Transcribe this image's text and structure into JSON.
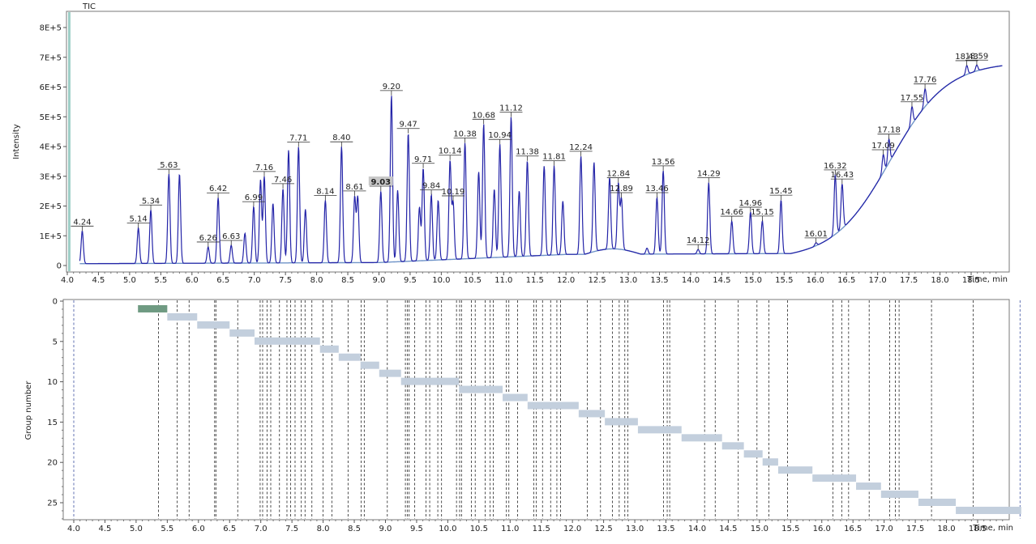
{
  "chart_data": [
    {
      "type": "line",
      "title": "TIC",
      "xlabel": "Time, min",
      "ylabel": "Intensity",
      "xlim": [
        4.0,
        19.0
      ],
      "ylim": [
        0,
        850000
      ],
      "x_ticks": [
        "4.0",
        "4.5",
        "5.0",
        "5.5",
        "6.0",
        "6.5",
        "7.0",
        "7.5",
        "8.0",
        "8.5",
        "9.0",
        "9.5",
        "10.0",
        "10.5",
        "11.0",
        "11.5",
        "12.0",
        "12.5",
        "13.0",
        "13.5",
        "14.0",
        "14.5",
        "15.0",
        "15.5",
        "16.0",
        "16.5",
        "17.0",
        "17.5",
        "18.0",
        "18.5"
      ],
      "y_ticks": [
        {
          "value": 0,
          "label": "0"
        },
        {
          "value": 100000,
          "label": "1E+5"
        },
        {
          "value": 200000,
          "label": "2E+5"
        },
        {
          "value": 300000,
          "label": "3E+5"
        },
        {
          "value": 400000,
          "label": "4E+5"
        },
        {
          "value": 500000,
          "label": "5E+5"
        },
        {
          "value": 600000,
          "label": "6E+5"
        },
        {
          "value": 700000,
          "label": "7E+5"
        },
        {
          "value": 800000,
          "label": "8E+5"
        }
      ],
      "cursor_x": 4.24,
      "highlighted_label": "9.03",
      "peaks": [
        {
          "t": 4.24,
          "label": "4.24",
          "h": 110000
        },
        {
          "t": 5.14,
          "label": "5.14",
          "h": 120000
        },
        {
          "t": 5.34,
          "label": "5.34",
          "h": 180000
        },
        {
          "t": 5.63,
          "label": "5.63",
          "h": 300000
        },
        {
          "t": 5.8,
          "label": "",
          "h": 300000
        },
        {
          "t": 6.26,
          "label": "6.26",
          "h": 55000
        },
        {
          "t": 6.42,
          "label": "6.42",
          "h": 220000
        },
        {
          "t": 6.63,
          "label": "6.63",
          "h": 60000
        },
        {
          "t": 6.85,
          "label": "",
          "h": 100000
        },
        {
          "t": 6.99,
          "label": "6.99",
          "h": 190000
        },
        {
          "t": 7.1,
          "label": "",
          "h": 280000
        },
        {
          "t": 7.16,
          "label": "7.16",
          "h": 290000
        },
        {
          "t": 7.3,
          "label": "",
          "h": 200000
        },
        {
          "t": 7.46,
          "label": "7.46",
          "h": 250000
        },
        {
          "t": 7.55,
          "label": "",
          "h": 380000
        },
        {
          "t": 7.71,
          "label": "7.71",
          "h": 390000
        },
        {
          "t": 7.82,
          "label": "",
          "h": 180000
        },
        {
          "t": 8.14,
          "label": "8.14",
          "h": 210000
        },
        {
          "t": 8.4,
          "label": "8.40",
          "h": 390000
        },
        {
          "t": 8.61,
          "label": "8.61",
          "h": 220000
        },
        {
          "t": 8.66,
          "label": "",
          "h": 220000
        },
        {
          "t": 9.03,
          "label": "9.03",
          "h": 240000
        },
        {
          "t": 9.2,
          "label": "9.20",
          "h": 560000
        },
        {
          "t": 9.3,
          "label": "",
          "h": 240000
        },
        {
          "t": 9.47,
          "label": "9.47",
          "h": 430000
        },
        {
          "t": 9.65,
          "label": "",
          "h": 180000
        },
        {
          "t": 9.71,
          "label": "9.71",
          "h": 310000
        },
        {
          "t": 9.84,
          "label": "9.84",
          "h": 220000
        },
        {
          "t": 9.95,
          "label": "",
          "h": 200000
        },
        {
          "t": 10.14,
          "label": "10.14",
          "h": 330000
        },
        {
          "t": 10.19,
          "label": "10.19",
          "h": 190000
        },
        {
          "t": 10.38,
          "label": "10.38",
          "h": 390000
        },
        {
          "t": 10.6,
          "label": "",
          "h": 290000
        },
        {
          "t": 10.68,
          "label": "10.68",
          "h": 450000
        },
        {
          "t": 10.85,
          "label": "",
          "h": 230000
        },
        {
          "t": 10.94,
          "label": "10.94",
          "h": 380000
        },
        {
          "t": 11.12,
          "label": "11.12",
          "h": 470000
        },
        {
          "t": 11.25,
          "label": "",
          "h": 220000
        },
        {
          "t": 11.38,
          "label": "11.38",
          "h": 320000
        },
        {
          "t": 11.65,
          "label": "",
          "h": 300000
        },
        {
          "t": 11.81,
          "label": "11.81",
          "h": 300000
        },
        {
          "t": 11.95,
          "label": "",
          "h": 180000
        },
        {
          "t": 12.24,
          "label": "12.24",
          "h": 330000
        },
        {
          "t": 12.45,
          "label": "",
          "h": 300000
        },
        {
          "t": 12.7,
          "label": "",
          "h": 240000
        },
        {
          "t": 12.84,
          "label": "12.84",
          "h": 220000
        },
        {
          "t": 12.89,
          "label": "12.89",
          "h": 170000
        },
        {
          "t": 13.3,
          "label": "",
          "h": 20000
        },
        {
          "t": 13.46,
          "label": "13.46",
          "h": 190000
        },
        {
          "t": 13.56,
          "label": "13.56",
          "h": 280000
        },
        {
          "t": 14.12,
          "label": "14.12",
          "h": 15000
        },
        {
          "t": 14.29,
          "label": "14.29",
          "h": 240000
        },
        {
          "t": 14.66,
          "label": "14.66",
          "h": 110000
        },
        {
          "t": 14.96,
          "label": "14.96",
          "h": 140000
        },
        {
          "t": 15.15,
          "label": "15.15",
          "h": 110000
        },
        {
          "t": 15.45,
          "label": "15.45",
          "h": 180000
        },
        {
          "t": 16.01,
          "label": "16.01",
          "h": 10000
        },
        {
          "t": 16.32,
          "label": "16.32",
          "h": 200000
        },
        {
          "t": 16.43,
          "label": "16.43",
          "h": 150000
        },
        {
          "t": 17.09,
          "label": "17.09",
          "h": 60000
        },
        {
          "t": 17.18,
          "label": "17.18",
          "h": 80000
        },
        {
          "t": 17.55,
          "label": "17.55",
          "h": 60000
        },
        {
          "t": 17.76,
          "label": "17.76",
          "h": 60000
        },
        {
          "t": 18.43,
          "label": "18.43",
          "h": 30000
        },
        {
          "t": 18.59,
          "label": "18.59",
          "h": 20000
        }
      ]
    },
    {
      "type": "bar",
      "xlabel": "Time, min",
      "ylabel": "Group number",
      "xlim": [
        3.8,
        19.3
      ],
      "ylim": [
        0,
        27.5
      ],
      "x_ticks": [
        "4.0",
        "4.5",
        "5.0",
        "5.5",
        "6.0",
        "6.5",
        "7.0",
        "7.5",
        "8.0",
        "8.5",
        "9.0",
        "9.5",
        "10.0",
        "10.5",
        "11.0",
        "11.5",
        "12.0",
        "12.5",
        "13.0",
        "13.5",
        "14.0",
        "14.5",
        "15.0",
        "15.5",
        "16.0",
        "16.5",
        "17.0",
        "17.5",
        "18.0",
        "18.5"
      ],
      "y_ticks": [
        "0",
        "5",
        "10",
        "15",
        "20",
        "25"
      ],
      "segments": [
        {
          "group": 1,
          "start": 5.03,
          "end": 5.5,
          "active": true
        },
        {
          "group": 2,
          "start": 5.5,
          "end": 5.98,
          "active": false
        },
        {
          "group": 3,
          "start": 5.98,
          "end": 6.5,
          "active": false
        },
        {
          "group": 4,
          "start": 6.5,
          "end": 6.9,
          "active": false
        },
        {
          "group": 5,
          "start": 6.9,
          "end": 7.95,
          "active": false
        },
        {
          "group": 6,
          "start": 7.95,
          "end": 8.25,
          "active": false
        },
        {
          "group": 7,
          "start": 8.25,
          "end": 8.6,
          "active": false
        },
        {
          "group": 8,
          "start": 8.6,
          "end": 8.9,
          "active": false
        },
        {
          "group": 9,
          "start": 8.9,
          "end": 9.25,
          "active": false
        },
        {
          "group": 10,
          "start": 9.25,
          "end": 10.18,
          "active": false
        },
        {
          "group": 11,
          "start": 10.18,
          "end": 10.88,
          "active": false
        },
        {
          "group": 12,
          "start": 10.88,
          "end": 11.28,
          "active": false
        },
        {
          "group": 13,
          "start": 11.28,
          "end": 12.1,
          "active": false
        },
        {
          "group": 14,
          "start": 12.1,
          "end": 12.52,
          "active": false
        },
        {
          "group": 15,
          "start": 12.52,
          "end": 13.05,
          "active": false
        },
        {
          "group": 16,
          "start": 13.05,
          "end": 13.75,
          "active": false
        },
        {
          "group": 17,
          "start": 13.75,
          "end": 14.4,
          "active": false
        },
        {
          "group": 18,
          "start": 14.4,
          "end": 14.75,
          "active": false
        },
        {
          "group": 19,
          "start": 14.75,
          "end": 15.05,
          "active": false
        },
        {
          "group": 20,
          "start": 15.05,
          "end": 15.3,
          "active": false
        },
        {
          "group": 21,
          "start": 15.3,
          "end": 15.85,
          "active": false
        },
        {
          "group": 22,
          "start": 15.85,
          "end": 16.55,
          "active": false
        },
        {
          "group": 23,
          "start": 16.55,
          "end": 16.95,
          "active": false
        },
        {
          "group": 24,
          "start": 16.95,
          "end": 17.55,
          "active": false
        },
        {
          "group": 25,
          "start": 17.55,
          "end": 18.15,
          "active": false
        },
        {
          "group": 26,
          "start": 18.15,
          "end": 19.2,
          "active": false
        }
      ],
      "boundaries": [
        4.0,
        5.36,
        5.66,
        5.85,
        6.26,
        6.28,
        6.63,
        6.99,
        7.03,
        7.1,
        7.16,
        7.3,
        7.42,
        7.48,
        7.55,
        7.65,
        7.71,
        7.82,
        8.0,
        8.14,
        8.4,
        8.61,
        8.66,
        9.03,
        9.32,
        9.35,
        9.38,
        9.47,
        9.65,
        9.71,
        9.84,
        9.9,
        10.14,
        10.19,
        10.22,
        10.38,
        10.44,
        10.6,
        10.68,
        10.73,
        10.94,
        10.98,
        11.12,
        11.38,
        11.42,
        11.52,
        11.65,
        11.75,
        11.81,
        12.24,
        12.45,
        12.64,
        12.75,
        12.84,
        12.89,
        13.46,
        13.52,
        13.56,
        14.12,
        14.29,
        14.66,
        14.96,
        15.15,
        15.45,
        16.18,
        16.32,
        16.43,
        16.76,
        17.09,
        17.18,
        17.24,
        17.76,
        18.43,
        19.18
      ]
    }
  ]
}
